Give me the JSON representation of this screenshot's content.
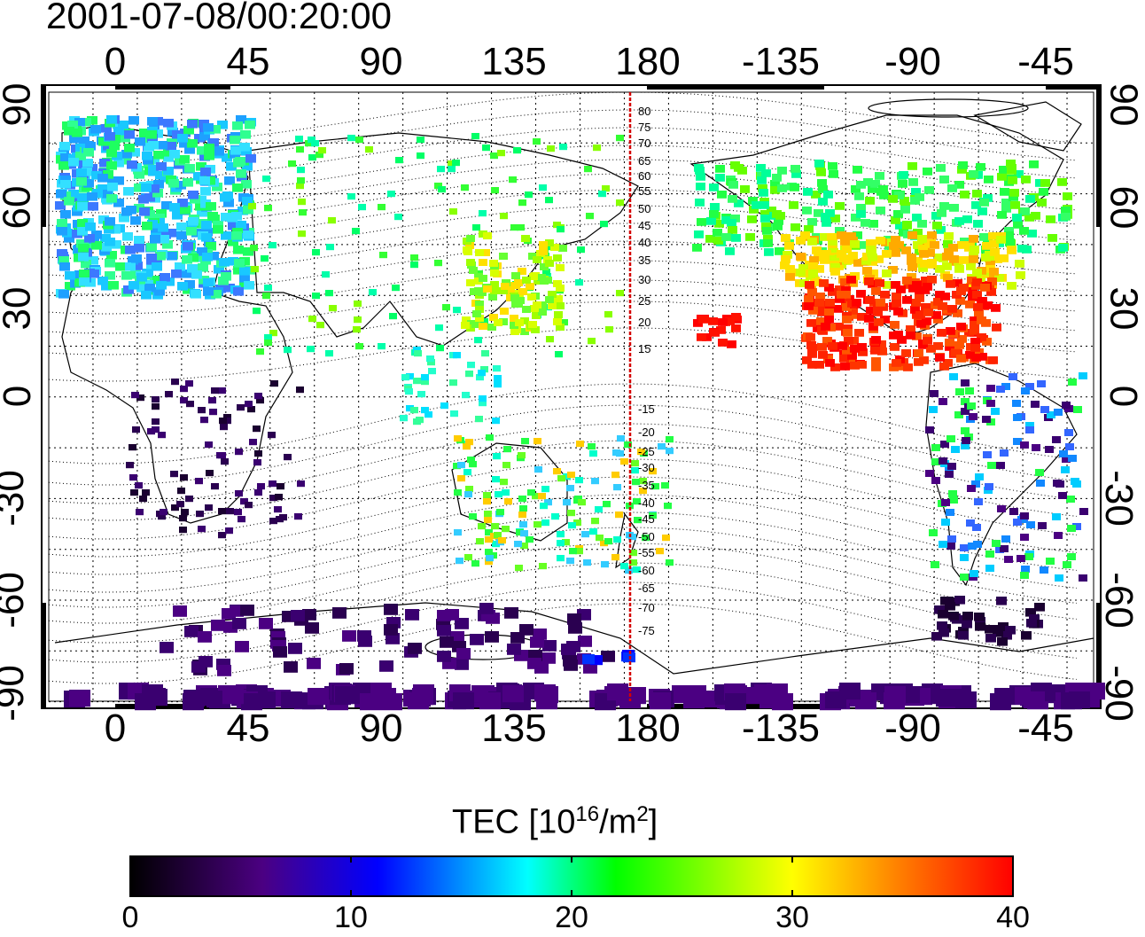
{
  "title": "2001-07-08/00:20:00",
  "axes": {
    "top_longitude_labels": [
      "0",
      "45",
      "90",
      "135",
      "180",
      "-135",
      "-90",
      "-45"
    ],
    "bottom_longitude_labels": [
      "0",
      "45",
      "90",
      "135",
      "180",
      "-135",
      "-90",
      "-45"
    ],
    "latitude_labels": [
      "90",
      "60",
      "30",
      "0",
      "-30",
      "-60",
      "-90"
    ]
  },
  "meridian_labels": {
    "north": [
      "80",
      "75",
      "70",
      "65",
      "60",
      "55",
      "50",
      "45",
      "40",
      "35",
      "30",
      "25",
      "20",
      "15"
    ],
    "south": [
      "-15",
      "-20",
      "-25",
      "-30",
      "-35",
      "-40",
      "-45",
      "-50",
      "-55",
      "-60",
      "-65",
      "-70",
      "-75"
    ]
  },
  "colorbar": {
    "title_prefix": "TEC  [10",
    "title_exp1": "16",
    "title_mid": "/m",
    "title_exp2": "2",
    "title_suffix": "]",
    "ticks": [
      "0",
      "10",
      "20",
      "30",
      "40"
    ],
    "colors": [
      "#000000",
      "#4b0082",
      "#0000ff",
      "#00ffff",
      "#00ff00",
      "#ffff00",
      "#ff0000"
    ]
  },
  "colors": {
    "meridian_line": "#d40000",
    "grid": "#000000"
  }
}
